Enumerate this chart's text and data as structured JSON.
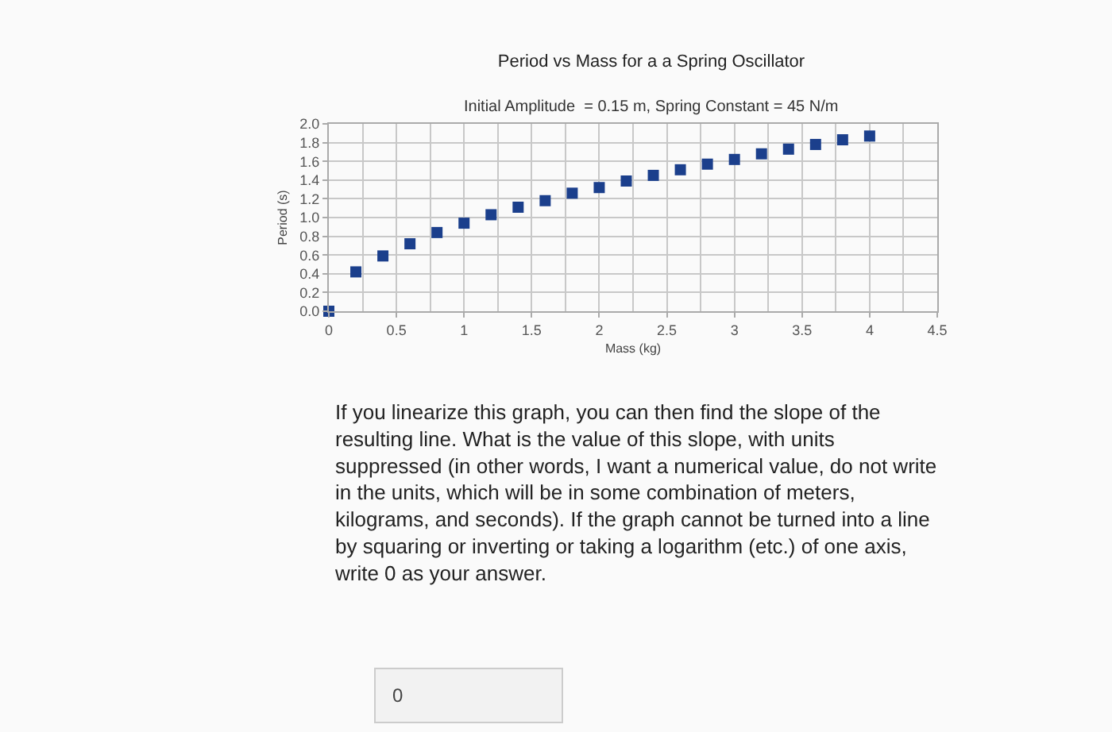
{
  "chart_data": {
    "type": "scatter",
    "title": "Period vs Mass for a a Spring Oscillator",
    "subtitle": "Initial Amplitude  = 0.15 m, Spring Constant = 45 N/m",
    "xlabel": "Mass (kg)",
    "ylabel": "Period (s)",
    "x": [
      0,
      0.2,
      0.4,
      0.6,
      0.8,
      1.0,
      1.2,
      1.4,
      1.6,
      1.8,
      2.0,
      2.2,
      2.4,
      2.6,
      2.8,
      3.0,
      3.2,
      3.4,
      3.6,
      3.8,
      4.0
    ],
    "series": [
      {
        "color": "#1b3f8c",
        "values": [
          0,
          0.42,
          0.59,
          0.72,
          0.84,
          0.94,
          1.03,
          1.11,
          1.18,
          1.26,
          1.32,
          1.39,
          1.45,
          1.51,
          1.57,
          1.62,
          1.68,
          1.73,
          1.78,
          1.83,
          1.87
        ]
      }
    ],
    "xlim": [
      0,
      4.5
    ],
    "xticks": [
      0,
      0.5,
      1,
      1.5,
      2,
      2.5,
      3,
      3.5,
      4,
      4.5
    ],
    "ylim": [
      0,
      2.0
    ],
    "yticks": [
      {
        "value": 0,
        "label": "0.0"
      },
      {
        "value": 0.2,
        "label": "0.2"
      },
      {
        "value": 0.4,
        "label": "0.4"
      },
      {
        "value": 0.6,
        "label": "0.6"
      },
      {
        "value": 0.8,
        "label": "0.8"
      },
      {
        "value": 1.0,
        "label": "1.0"
      },
      {
        "value": 1.2,
        "label": "1.2"
      },
      {
        "value": 1.4,
        "label": "1.4"
      },
      {
        "value": 1.6,
        "label": "1.6"
      },
      {
        "value": 1.8,
        "label": "1.8"
      },
      {
        "value": 2.0,
        "label": "2.0"
      }
    ],
    "grid": true,
    "marker": "square",
    "annotations": [
      "If you linearize this graph, you can then find the slope of the resulting line. What is the value of this slope, with units suppressed (in other words, I want a numerical value, do not write in the units, which will be in some combination of meters, kilograms, and seconds). If the graph cannot be turned into a line by squaring or inverting or taking a logarithm (etc.) of one axis, write 0 as your answer.",
      "0"
    ]
  }
}
